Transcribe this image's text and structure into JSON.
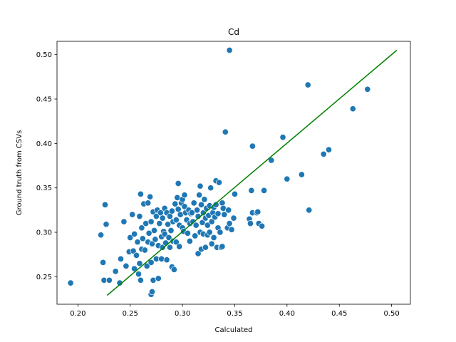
{
  "chart_data": {
    "type": "scatter",
    "title": "Cd",
    "xlabel": "Calculated",
    "ylabel": "Ground truth from CSVs",
    "xlim": [
      0.18,
      0.518
    ],
    "ylim": [
      0.219,
      0.515
    ],
    "xticks": [
      0.2,
      0.25,
      0.3,
      0.35,
      0.4,
      0.45,
      0.5
    ],
    "yticks": [
      0.25,
      0.3,
      0.35,
      0.4,
      0.45,
      0.5
    ],
    "xtick_labels": [
      "0.20",
      "0.25",
      "0.30",
      "0.35",
      "0.40",
      "0.45",
      "0.50"
    ],
    "ytick_labels": [
      "0.25",
      "0.30",
      "0.35",
      "0.40",
      "0.45",
      "0.50"
    ],
    "grid": false,
    "point_color": "#1f77b4",
    "line_color": "#008000",
    "fit_line": {
      "x": [
        0.228,
        0.505
      ],
      "y": [
        0.229,
        0.505
      ]
    },
    "points": [
      [
        0.193,
        0.243
      ],
      [
        0.222,
        0.297
      ],
      [
        0.224,
        0.266
      ],
      [
        0.225,
        0.246
      ],
      [
        0.226,
        0.331
      ],
      [
        0.227,
        0.309
      ],
      [
        0.23,
        0.246
      ],
      [
        0.236,
        0.256
      ],
      [
        0.24,
        0.243
      ],
      [
        0.241,
        0.27
      ],
      [
        0.244,
        0.312
      ],
      [
        0.246,
        0.262
      ],
      [
        0.249,
        0.278
      ],
      [
        0.25,
        0.294
      ],
      [
        0.252,
        0.32
      ],
      [
        0.253,
        0.279
      ],
      [
        0.254,
        0.259
      ],
      [
        0.254,
        0.298
      ],
      [
        0.256,
        0.274
      ],
      [
        0.257,
        0.289
      ],
      [
        0.258,
        0.253
      ],
      [
        0.259,
        0.265
      ],
      [
        0.259,
        0.318
      ],
      [
        0.26,
        0.343
      ],
      [
        0.26,
        0.246
      ],
      [
        0.261,
        0.305
      ],
      [
        0.261,
        0.281
      ],
      [
        0.262,
        0.293
      ],
      [
        0.263,
        0.332
      ],
      [
        0.264,
        0.28
      ],
      [
        0.265,
        0.31
      ],
      [
        0.266,
        0.262
      ],
      [
        0.267,
        0.289
      ],
      [
        0.267,
        0.333
      ],
      [
        0.268,
        0.299
      ],
      [
        0.269,
        0.34
      ],
      [
        0.27,
        0.266
      ],
      [
        0.27,
        0.312
      ],
      [
        0.27,
        0.23
      ],
      [
        0.271,
        0.233
      ],
      [
        0.271,
        0.287
      ],
      [
        0.272,
        0.323
      ],
      [
        0.272,
        0.246
      ],
      [
        0.273,
        0.302
      ],
      [
        0.274,
        0.292
      ],
      [
        0.275,
        0.318
      ],
      [
        0.275,
        0.27
      ],
      [
        0.276,
        0.325
      ],
      [
        0.277,
        0.285
      ],
      [
        0.277,
        0.248
      ],
      [
        0.278,
        0.31
      ],
      [
        0.279,
        0.322
      ],
      [
        0.28,
        0.295
      ],
      [
        0.28,
        0.27
      ],
      [
        0.281,
        0.316
      ],
      [
        0.281,
        0.283
      ],
      [
        0.282,
        0.301
      ],
      [
        0.283,
        0.327
      ],
      [
        0.283,
        0.298
      ],
      [
        0.284,
        0.288
      ],
      [
        0.285,
        0.322
      ],
      [
        0.285,
        0.269
      ],
      [
        0.286,
        0.309
      ],
      [
        0.287,
        0.294
      ],
      [
        0.288,
        0.318
      ],
      [
        0.288,
        0.283
      ],
      [
        0.289,
        0.302
      ],
      [
        0.29,
        0.324
      ],
      [
        0.29,
        0.261
      ],
      [
        0.291,
        0.29
      ],
      [
        0.291,
        0.312
      ],
      [
        0.292,
        0.258
      ],
      [
        0.293,
        0.332
      ],
      [
        0.294,
        0.289
      ],
      [
        0.294,
        0.314
      ],
      [
        0.295,
        0.339
      ],
      [
        0.296,
        0.326
      ],
      [
        0.296,
        0.355
      ],
      [
        0.297,
        0.284
      ],
      [
        0.297,
        0.308
      ],
      [
        0.298,
        0.32
      ],
      [
        0.299,
        0.333
      ],
      [
        0.3,
        0.305
      ],
      [
        0.3,
        0.337
      ],
      [
        0.301,
        0.301
      ],
      [
        0.302,
        0.329
      ],
      [
        0.302,
        0.342
      ],
      [
        0.303,
        0.322
      ],
      [
        0.304,
        0.314
      ],
      [
        0.305,
        0.299
      ],
      [
        0.306,
        0.325
      ],
      [
        0.307,
        0.29
      ],
      [
        0.307,
        0.31
      ],
      [
        0.308,
        0.321
      ],
      [
        0.309,
        0.322
      ],
      [
        0.31,
        0.312
      ],
      [
        0.311,
        0.333
      ],
      [
        0.312,
        0.296
      ],
      [
        0.313,
        0.308
      ],
      [
        0.314,
        0.325
      ],
      [
        0.315,
        0.276
      ],
      [
        0.315,
        0.318
      ],
      [
        0.316,
        0.342
      ],
      [
        0.317,
        0.352
      ],
      [
        0.317,
        0.3
      ],
      [
        0.318,
        0.331
      ],
      [
        0.318,
        0.281
      ],
      [
        0.319,
        0.311
      ],
      [
        0.32,
        0.322
      ],
      [
        0.32,
        0.298
      ],
      [
        0.321,
        0.337
      ],
      [
        0.322,
        0.316
      ],
      [
        0.322,
        0.283
      ],
      [
        0.323,
        0.327
      ],
      [
        0.324,
        0.308
      ],
      [
        0.324,
        0.297
      ],
      [
        0.325,
        0.319
      ],
      [
        0.326,
        0.3
      ],
      [
        0.326,
        0.33
      ],
      [
        0.327,
        0.35
      ],
      [
        0.328,
        0.312
      ],
      [
        0.328,
        0.287
      ],
      [
        0.329,
        0.322
      ],
      [
        0.33,
        0.328
      ],
      [
        0.33,
        0.294
      ],
      [
        0.331,
        0.317
      ],
      [
        0.332,
        0.358
      ],
      [
        0.332,
        0.331
      ],
      [
        0.333,
        0.283
      ],
      [
        0.334,
        0.305
      ],
      [
        0.334,
        0.321
      ],
      [
        0.335,
        0.356
      ],
      [
        0.336,
        0.3
      ],
      [
        0.337,
        0.283
      ],
      [
        0.338,
        0.333
      ],
      [
        0.338,
        0.284
      ],
      [
        0.339,
        0.327
      ],
      [
        0.34,
        0.32
      ],
      [
        0.341,
        0.413
      ],
      [
        0.343,
        0.305
      ],
      [
        0.344,
        0.325
      ],
      [
        0.345,
        0.31
      ],
      [
        0.345,
        0.505
      ],
      [
        0.347,
        0.303
      ],
      [
        0.349,
        0.316
      ],
      [
        0.35,
        0.343
      ],
      [
        0.364,
        0.315
      ],
      [
        0.365,
        0.31
      ],
      [
        0.366,
        0.347
      ],
      [
        0.367,
        0.397
      ],
      [
        0.367,
        0.322
      ],
      [
        0.371,
        0.322
      ],
      [
        0.372,
        0.323
      ],
      [
        0.373,
        0.31
      ],
      [
        0.376,
        0.307
      ],
      [
        0.378,
        0.347
      ],
      [
        0.385,
        0.381
      ],
      [
        0.396,
        0.407
      ],
      [
        0.4,
        0.36
      ],
      [
        0.414,
        0.365
      ],
      [
        0.42,
        0.466
      ],
      [
        0.421,
        0.325
      ],
      [
        0.435,
        0.388
      ],
      [
        0.44,
        0.393
      ],
      [
        0.463,
        0.439
      ],
      [
        0.477,
        0.461
      ]
    ]
  }
}
